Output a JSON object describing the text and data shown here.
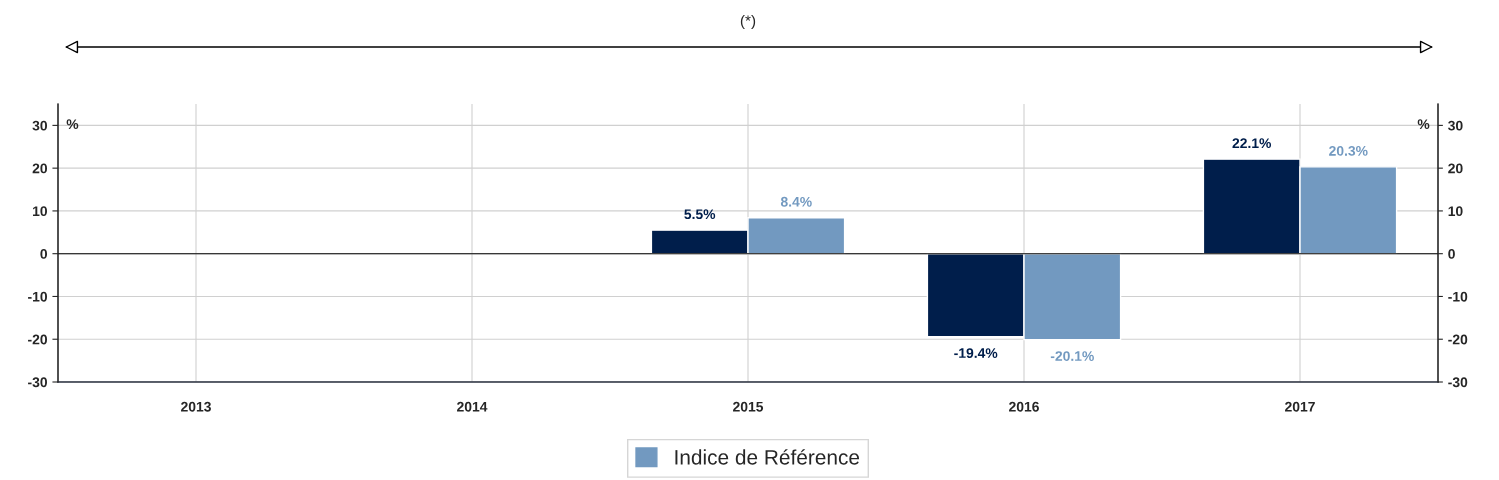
{
  "chart_data": {
    "type": "bar",
    "categories": [
      "2013",
      "2014",
      "2015",
      "2016",
      "2017"
    ],
    "series": [
      {
        "color": "#001e4b",
        "values": [
          null,
          null,
          5.5,
          -19.4,
          22.1
        ],
        "value_labels": [
          null,
          null,
          "5.5%",
          "-19.4%",
          "22.1%"
        ]
      },
      {
        "name": "Indice de Référence",
        "color": "#7299c0",
        "values": [
          null,
          null,
          8.4,
          -20.1,
          20.3
        ],
        "value_labels": [
          null,
          null,
          "8.4%",
          "-20.1%",
          "20.3%"
        ]
      }
    ],
    "ylim": [
      -30,
      35
    ],
    "yticks": [
      -30,
      -20,
      -10,
      0,
      10,
      20,
      30
    ],
    "y2lim": [
      -30,
      35
    ],
    "y2ticks": [
      -30,
      -20,
      -10,
      0,
      10,
      20,
      30
    ],
    "ylabel": "%",
    "y2label": "%",
    "annotations": [
      "(*)"
    ],
    "grid": true,
    "legend": "bottom"
  }
}
